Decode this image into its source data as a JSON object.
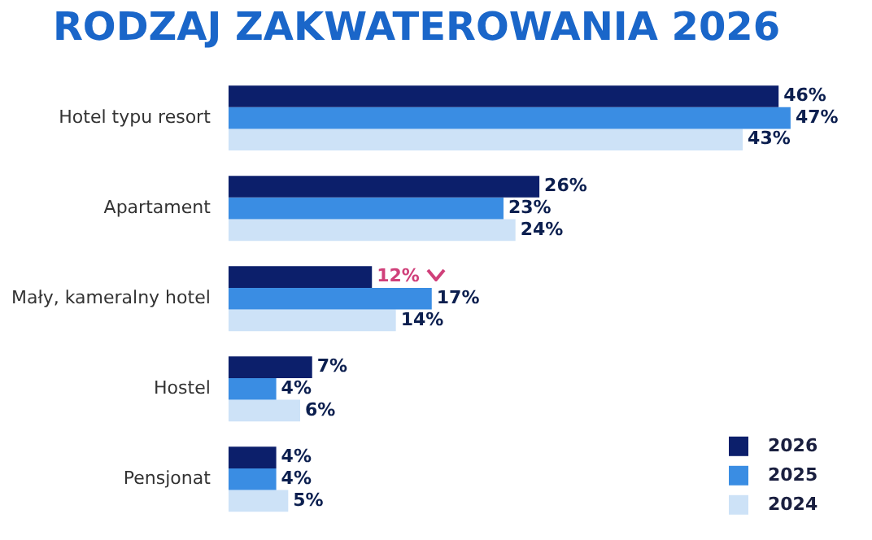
{
  "chart_data": {
    "type": "bar",
    "orientation": "horizontal",
    "title": "RODZAJ ZAKWATEROWANIA 2026",
    "categories": [
      "Hotel typu resort",
      "Apartament",
      "Mały, kameralny hotel",
      "Hostel",
      "Pensjonat"
    ],
    "series": [
      {
        "name": "2026",
        "color": "#0c1f6b",
        "values": [
          46,
          26,
          12,
          7,
          4
        ],
        "value_labels": [
          "46%",
          "26%",
          "12%",
          "7%",
          "4%"
        ]
      },
      {
        "name": "2025",
        "color": "#3a8de3",
        "values": [
          47,
          23,
          17,
          4,
          4
        ],
        "value_labels": [
          "47%",
          "23%",
          "17%",
          "4%",
          "4%"
        ]
      },
      {
        "name": "2024",
        "color": "#cde2f7",
        "values": [
          43,
          24,
          14,
          6,
          5
        ],
        "value_labels": [
          "43%",
          "24%",
          "14%",
          "6%",
          "5%"
        ]
      }
    ],
    "legend": "bottom right",
    "tick_labels": "y"
  }
}
